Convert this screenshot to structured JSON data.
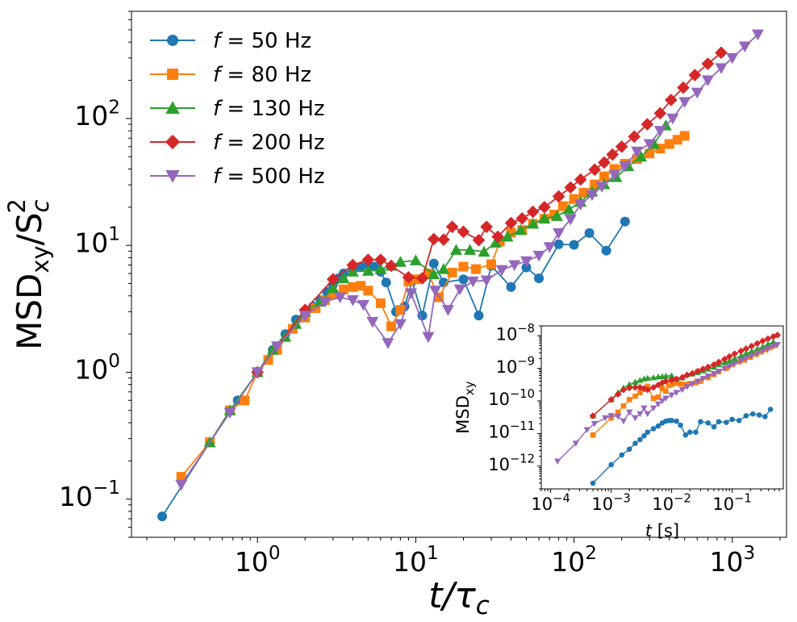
{
  "chart_data": [
    {
      "id": "main",
      "type": "line",
      "scale": "log-log",
      "xlabel": "t/τc",
      "ylabel": "MSDxy/Sc²",
      "xlim": [
        0.16,
        2200
      ],
      "ylim": [
        0.05,
        700
      ],
      "xticks": [
        {
          "exp": "0"
        },
        {
          "exp": "1"
        },
        {
          "exp": "2"
        },
        {
          "exp": "3"
        }
      ],
      "yticks": [
        {
          "exp": "−1"
        },
        {
          "exp": "0"
        },
        {
          "exp": "1"
        },
        {
          "exp": "2"
        }
      ],
      "legend_location": "upper left",
      "series": [
        {
          "name": "f = 50 Hz",
          "prefix": "f",
          "label": " = 50 Hz",
          "color": "#1f77b4",
          "marker": "circle",
          "x": [
            0.25,
            0.5,
            0.75,
            1.0,
            1.25,
            1.5,
            1.75,
            2.0,
            2.25,
            2.5,
            2.75,
            3.0,
            3.25,
            3.5,
            4.0,
            4.5,
            5.0,
            5.5,
            6.0,
            6.5,
            7.5,
            8.5,
            9.5,
            11,
            13,
            15,
            20,
            25,
            30,
            40,
            50,
            60,
            80,
            100,
            125,
            160,
            210
          ],
          "y": [
            0.073,
            0.28,
            0.6,
            1.0,
            1.5,
            2.0,
            2.6,
            3.0,
            3.3,
            3.7,
            4.3,
            4.9,
            5.5,
            6.0,
            6.5,
            6.8,
            7.0,
            6.8,
            6.2,
            5.1,
            3.0,
            3.3,
            5.2,
            2.8,
            7.2,
            5.1,
            5.4,
            2.8,
            6.9,
            4.7,
            6.7,
            5.5,
            10.2,
            10.1,
            12.5,
            9.1,
            15.4
          ]
        },
        {
          "name": "f = 80 Hz",
          "prefix": "f",
          "label": " = 80 Hz",
          "color": "#ff7f0e",
          "marker": "square",
          "x": [
            0.33,
            0.5,
            0.67,
            0.83,
            1.0,
            1.17,
            1.33,
            1.67,
            2.0,
            2.33,
            2.67,
            3.0,
            3.5,
            4.0,
            4.5,
            5.0,
            6.0,
            7.0,
            8.0,
            9.0,
            10,
            12,
            14,
            17,
            20,
            24,
            30,
            34,
            40,
            47,
            55,
            65,
            75,
            85,
            100,
            115,
            135,
            155,
            180,
            210,
            250,
            300,
            350,
            400,
            450,
            500
          ],
          "y": [
            0.15,
            0.28,
            0.5,
            0.6,
            1.0,
            1.25,
            1.5,
            2.2,
            2.7,
            3.2,
            3.7,
            4.1,
            4.5,
            4.7,
            4.8,
            4.4,
            3.5,
            2.3,
            3.1,
            5.2,
            5.4,
            6.0,
            3.9,
            6.1,
            6.8,
            6.5,
            7.1,
            10.7,
            12.6,
            13.2,
            14.8,
            16.2,
            17.5,
            20.4,
            23.2,
            26.0,
            30.2,
            35.0,
            40.0,
            44.0,
            48.0,
            53.0,
            58.0,
            63.0,
            68.0,
            73.0
          ]
        },
        {
          "name": "f = 130 Hz",
          "prefix": "f",
          "label": " = 130 Hz",
          "color": "#2ca02c",
          "marker": "triangle-up",
          "x": [
            0.5,
            0.67,
            1.0,
            1.25,
            1.5,
            1.75,
            2.0,
            2.5,
            3.0,
            3.5,
            4.0,
            5.0,
            6.0,
            7.0,
            8.0,
            10,
            13,
            15,
            18,
            22,
            27,
            32,
            38,
            46,
            55,
            65,
            78,
            93,
            110,
            130,
            155,
            185,
            220,
            265,
            320,
            380
          ],
          "y": [
            0.28,
            0.5,
            1.0,
            1.5,
            1.9,
            2.4,
            3.0,
            3.6,
            4.6,
            5.5,
            6.2,
            6.3,
            6.5,
            6.9,
            7.4,
            7.6,
            5.9,
            6.5,
            9.2,
            9.2,
            8.9,
            10.5,
            11.7,
            13.2,
            14.8,
            16.3,
            17.0,
            19.2,
            22.0,
            26.5,
            30.3,
            34.5,
            42.0,
            50.0,
            63.0,
            88.0
          ]
        },
        {
          "name": "f = 200 Hz",
          "prefix": "f",
          "label": " = 200 Hz",
          "color": "#d62728",
          "marker": "diamond",
          "x": [
            1.0,
            2.0,
            3.0,
            4.0,
            5.0,
            6.0,
            7.0,
            9.0,
            11,
            13,
            15,
            17,
            20,
            25,
            28,
            33,
            40,
            47,
            55,
            65,
            80,
            95,
            110,
            135,
            155,
            175,
            200,
            240,
            290,
            350,
            410,
            490,
            580,
            700,
            850
          ],
          "y": [
            1.0,
            3.1,
            5.4,
            7.0,
            7.7,
            7.7,
            6.9,
            5.6,
            5.5,
            11.2,
            11.1,
            14.0,
            12.8,
            11.0,
            14.0,
            11.7,
            15.0,
            16.3,
            18.4,
            20.0,
            24.3,
            28.6,
            33.0,
            39.5,
            45.0,
            52.0,
            60.0,
            72.0,
            90.0,
            110.0,
            140.0,
            175.0,
            220.0,
            270.0,
            330.0
          ]
        },
        {
          "name": "f = 500 Hz",
          "prefix": "f",
          "label": " = 500 Hz",
          "color": "#9467bd",
          "marker": "triangle-down",
          "x": [
            0.33,
            0.67,
            1.0,
            1.33,
            2.0,
            2.67,
            3.33,
            4.0,
            4.67,
            5.33,
            6.67,
            8.0,
            9.33,
            12,
            13.3,
            16,
            19,
            23,
            28,
            35,
            42,
            50,
            60,
            70,
            80,
            95,
            110,
            130,
            150,
            180,
            210,
            250,
            300,
            350,
            420,
            500,
            600,
            700,
            850,
            1000,
            1200,
            1450
          ],
          "y": [
            0.13,
            0.48,
            1.0,
            1.6,
            2.8,
            3.6,
            3.9,
            3.7,
            3.4,
            2.5,
            1.7,
            2.4,
            4.2,
            1.9,
            4.4,
            3.1,
            4.5,
            5.2,
            5.3,
            6.4,
            7.0,
            7.5,
            8.3,
            9.7,
            12.5,
            16.0,
            21.0,
            25.0,
            29.0,
            36.0,
            42.0,
            55.0,
            63.0,
            80.0,
            100.0,
            135.0,
            160.0,
            200.0,
            250.0,
            300.0,
            370.0,
            460.0
          ]
        }
      ]
    },
    {
      "id": "inset",
      "type": "line",
      "scale": "log-log",
      "xlabel": "t [s]",
      "ylabel": "MSDxy",
      "xlim": [
        7e-05,
        0.7
      ],
      "ylim": [
        2e-13,
        2e-08
      ],
      "xticks": [
        {
          "exp": "−4"
        },
        {
          "exp": "−3"
        },
        {
          "exp": "−2"
        },
        {
          "exp": "−1"
        }
      ],
      "yticks": [
        {
          "exp": "−12"
        },
        {
          "exp": "−11"
        },
        {
          "exp": "−10"
        },
        {
          "exp": "−9"
        },
        {
          "exp": "−8"
        }
      ],
      "series": [
        {
          "name": "f = 50 Hz",
          "color": "#1f77b4",
          "marker": "circle",
          "x": [
            0.0005,
            0.001,
            0.0015,
            0.002,
            0.0025,
            0.003,
            0.0035,
            0.004,
            0.005,
            0.006,
            0.007,
            0.008,
            0.009,
            0.01,
            0.012,
            0.014,
            0.017,
            0.02,
            0.025,
            0.03,
            0.04,
            0.05,
            0.06,
            0.08,
            0.1,
            0.13,
            0.17,
            0.22,
            0.28,
            0.35,
            0.43
          ],
          "y": [
            3e-13,
            1.1e-12,
            2.2e-12,
            3.3e-12,
            5e-12,
            6.5e-12,
            8.5e-12,
            1.1e-11,
            1.4e-11,
            1.7e-11,
            2.1e-11,
            2.4e-11,
            2.5e-11,
            2.5e-11,
            2.4e-11,
            1.8e-11,
            9e-12,
            1.1e-11,
            1.1e-11,
            2.3e-11,
            2.1e-11,
            1.6e-11,
            2.3e-11,
            2.2e-11,
            2.7e-11,
            2.5e-11,
            3.5e-11,
            4e-11,
            3.7e-11,
            3.3e-11,
            5.5e-11
          ]
        },
        {
          "name": "f = 80 Hz",
          "color": "#ff7f0e",
          "marker": "square",
          "x": [
            0.0005,
            0.001,
            0.0013,
            0.0016,
            0.002,
            0.0025,
            0.003,
            0.0035,
            0.004,
            0.005,
            0.006,
            0.007,
            0.008,
            0.009,
            0.01,
            0.012,
            0.014,
            0.017,
            0.02,
            0.025,
            0.03,
            0.04,
            0.05,
            0.06,
            0.08,
            0.1,
            0.13,
            0.16,
            0.2,
            0.25,
            0.3,
            0.36,
            0.42,
            0.5
          ],
          "y": [
            9e-12,
            3e-11,
            4.5e-11,
            7e-11,
            1.1e-10,
            1.4e-10,
            1.8e-10,
            2.3e-10,
            2.8e-10,
            1.2e-10,
            1.3e-10,
            2.4e-10,
            2e-10,
            3e-10,
            3.2e-10,
            3.5e-10,
            3.3e-10,
            3.2e-10,
            3.4e-10,
            3.6e-10,
            4e-10,
            5.2e-10,
            6.5e-10,
            8e-10,
            1e-09,
            1.3e-09,
            1.6e-09,
            1.8e-09,
            2.2e-09,
            2.7e-09,
            3.2e-09,
            3.7e-09,
            4.3e-09,
            5e-09
          ]
        },
        {
          "name": "f = 130 Hz",
          "color": "#2ca02c",
          "marker": "triangle-up",
          "x": [
            0.0005,
            0.001,
            0.0013,
            0.0016,
            0.002,
            0.0025,
            0.003,
            0.0035,
            0.004,
            0.005,
            0.006,
            0.007,
            0.008,
            0.01,
            0.012,
            0.015,
            0.018,
            0.022,
            0.027,
            0.033,
            0.04,
            0.05,
            0.06,
            0.075,
            0.09,
            0.11,
            0.14,
            0.17,
            0.21,
            0.26,
            0.32,
            0.39,
            0.48
          ],
          "y": [
            3.5e-11,
            1.1e-10,
            1.8e-10,
            2.5e-10,
            3.2e-10,
            3.8e-10,
            4.3e-10,
            4.8e-10,
            5e-10,
            5.2e-10,
            5.5e-10,
            5.6e-10,
            5.8e-10,
            6e-10,
            4.7e-10,
            5.2e-10,
            6.5e-10,
            6.8e-10,
            7.5e-10,
            8.5e-10,
            9.5e-10,
            1.1e-09,
            1.3e-09,
            1.5e-09,
            1.7e-09,
            2e-09,
            2.4e-09,
            2.9e-09,
            3.3e-09,
            3.9e-09,
            4.6e-09,
            5.5e-09,
            6.5e-09
          ]
        },
        {
          "name": "f = 200 Hz",
          "color": "#d62728",
          "marker": "diamond",
          "x": [
            0.0005,
            0.001,
            0.0013,
            0.0016,
            0.002,
            0.0025,
            0.003,
            0.0035,
            0.004,
            0.005,
            0.006,
            0.007,
            0.008,
            0.01,
            0.012,
            0.015,
            0.018,
            0.022,
            0.027,
            0.033,
            0.04,
            0.05,
            0.06,
            0.075,
            0.09,
            0.11,
            0.14,
            0.17,
            0.21,
            0.26,
            0.32,
            0.39,
            0.48,
            0.56
          ],
          "y": [
            3.5e-11,
            1.1e-10,
            1.6e-10,
            2.2e-10,
            2.5e-10,
            2.6e-10,
            2.6e-10,
            2.4e-10,
            2.2e-10,
            2.6e-10,
            3.1e-10,
            3.6e-10,
            4e-10,
            4.4e-10,
            4.7e-10,
            5.3e-10,
            6.2e-10,
            7e-10,
            8.2e-10,
            9.5e-10,
            1.1e-09,
            1.3e-09,
            1.55e-09,
            1.9e-09,
            2.3e-09,
            2.8e-09,
            3.4e-09,
            4e-09,
            4.8e-09,
            5.8e-09,
            6.9e-09,
            8.1e-09,
            9.4e-09,
            1.05e-08
          ]
        },
        {
          "name": "f = 500 Hz",
          "color": "#9467bd",
          "marker": "triangle-down",
          "x": [
            0.00013,
            0.00026,
            0.0004,
            0.00053,
            0.0008,
            0.001,
            0.0013,
            0.0016,
            0.002,
            0.0025,
            0.003,
            0.0035,
            0.004,
            0.005,
            0.006,
            0.007,
            0.008,
            0.01,
            0.012,
            0.015,
            0.018,
            0.022,
            0.027,
            0.033,
            0.04,
            0.05,
            0.06,
            0.075,
            0.09,
            0.11,
            0.14,
            0.17,
            0.21,
            0.26,
            0.32,
            0.39,
            0.48,
            0.56
          ],
          "y": [
            1.4e-12,
            5e-12,
            1.3e-11,
            2e-11,
            3e-11,
            3.5e-11,
            3.3e-11,
            2.4e-11,
            4.5e-11,
            3e-11,
            4e-11,
            6e-11,
            4e-11,
            6e-11,
            8e-11,
            1e-10,
            1.2e-10,
            1.5e-10,
            1.8e-10,
            2.2e-10,
            2.7e-10,
            3.3e-10,
            4e-10,
            4.8e-10,
            5.7e-10,
            6.8e-10,
            8e-10,
            9.8e-10,
            1.15e-09,
            1.4e-09,
            1.7e-09,
            2e-09,
            2.4e-09,
            2.9e-09,
            3.4e-09,
            4e-09,
            4.7e-09,
            5.3e-09
          ]
        }
      ]
    }
  ]
}
